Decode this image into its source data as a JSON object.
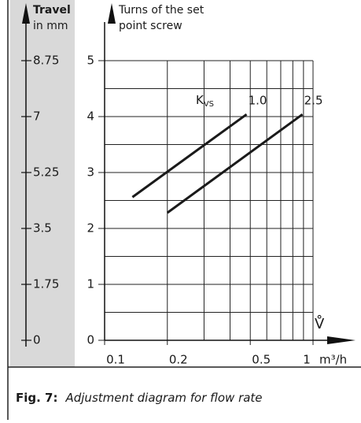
{
  "chart_data": {
    "type": "line",
    "y_label_line1": "Turns of the set",
    "y_label_line2": "point screw",
    "y2_label_line1": "Travel",
    "y2_label_line2": "in mm",
    "x_symbol": "V̊",
    "x_unit": "m³/h",
    "series_label_main": "K",
    "series_label_sub": "VS",
    "xscale": "log",
    "xlim": [
      0.1,
      1
    ],
    "xticks": [
      0.1,
      0.2,
      0.5,
      1
    ],
    "xminorticks": [
      0.3,
      0.4,
      0.6,
      0.7,
      0.8,
      0.9
    ],
    "ylim": [
      0,
      5
    ],
    "yticks": [
      0,
      1,
      2,
      3,
      4,
      5
    ],
    "yminorticks": [
      0.5,
      1.5,
      2.5,
      3.5,
      4.5
    ],
    "y2lim": [
      0,
      8.75
    ],
    "y2ticks": [
      0,
      1.75,
      3.5,
      5.25,
      7,
      8.75
    ],
    "grid": true,
    "series": [
      {
        "name": "1.0",
        "color": "#1a1a1a",
        "x": [
          0.136,
          0.48
        ],
        "values": [
          2.56,
          4.04
        ]
      },
      {
        "name": "2.5",
        "color": "#1a1a1a",
        "x": [
          0.2,
          0.89
        ],
        "values": [
          2.28,
          4.04
        ]
      }
    ],
    "caption_label": "Fig. 7:",
    "caption_text": "Adjustment diagram for flow rate"
  }
}
